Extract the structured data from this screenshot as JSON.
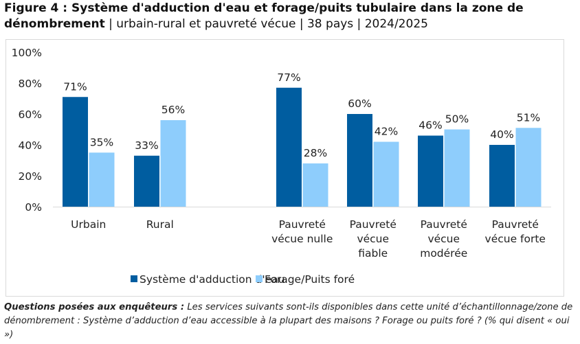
{
  "title": {
    "bold": "Figure 4 : Système d'adduction d'eau et forage/puits tubulaire dans la zone de dénombrement",
    "rest": " | urbain-rural et pauvreté vécue | 38 pays | 2024/2025"
  },
  "chart_data": {
    "type": "bar",
    "ylim": [
      0,
      100
    ],
    "yticks": [
      "0%",
      "20%",
      "40%",
      "60%",
      "80%",
      "100%"
    ],
    "yticks_values": [
      0,
      20,
      40,
      60,
      80,
      100
    ],
    "grid": false,
    "legend_position": "bottom",
    "categories": [
      [
        "Urbain"
      ],
      [
        "Rural"
      ],
      [
        "Pauvreté",
        "vécue nulle"
      ],
      [
        "Pauvreté",
        "vécue",
        "fiable"
      ],
      [
        "Pauvreté",
        "vécue",
        "modérée"
      ],
      [
        "Pauvreté",
        "vécue forte"
      ]
    ],
    "series": [
      {
        "name": "Système d'adduction d'eau",
        "color": "#005da0",
        "values": [
          71,
          33,
          77,
          60,
          46,
          40
        ],
        "labels": [
          "71%",
          "33%",
          "77%",
          "60%",
          "46%",
          "40%"
        ]
      },
      {
        "name": "Forage/Puits foré",
        "color": "#8ecdfc",
        "values": [
          35,
          56,
          28,
          42,
          50,
          51
        ],
        "labels": [
          "35%",
          "56%",
          "28%",
          "42%",
          "50%",
          "51%"
        ]
      }
    ]
  },
  "note": {
    "bold": "Questions posées aux enquêteurs :",
    "text": " Les services suivants sont-ils disponibles dans cette unité d’échantillonnage/zone de dénombrement : Système d’adduction d’eau accessible à la plupart des maisons ? Forage ou puits foré ? (% qui disent « oui »)"
  }
}
